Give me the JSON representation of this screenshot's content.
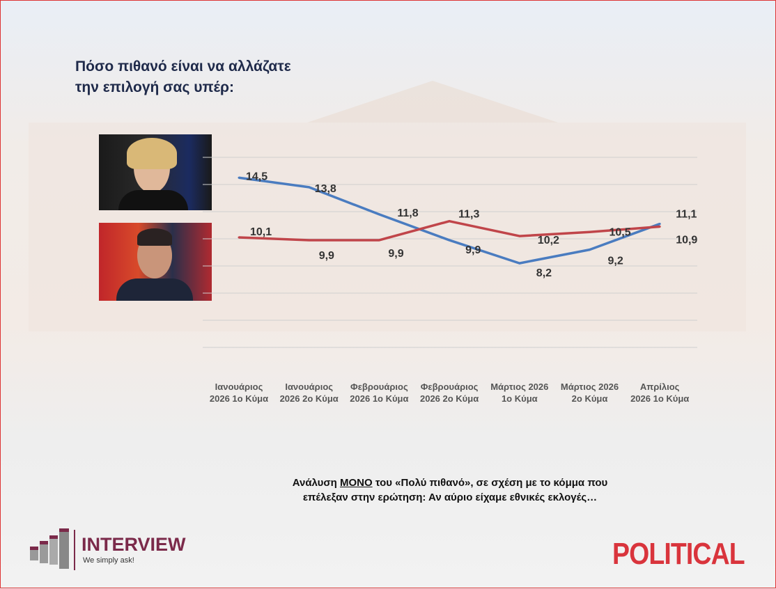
{
  "title_line1": "Πόσο πιθανό είναι να αλλάζατε",
  "title_line2": "την επιλογή σας υπέρ:",
  "note": {
    "pre": "Ανάλυση ",
    "emph": "ΜΟΝΟ",
    "post": " του «Πολύ πιθανό», σε σχέση με το κόμμα που επέλεξαν στην ερώτηση: Αν αύριο είχαμε εθνικές εκλογές…"
  },
  "logo": {
    "name": "INTERVIEW",
    "tagline": "We simply ask!"
  },
  "brand": "POLITICAL",
  "chart_data": {
    "type": "line",
    "title": "Πόσο πιθανό είναι να αλλάζατε την επιλογή σας υπέρ:",
    "categories": [
      [
        "Ιανουάριος",
        "2026 1ο Κύμα"
      ],
      [
        "Ιανουάριος",
        "2026 2ο Κύμα"
      ],
      [
        "Φεβρουάριος",
        "2026 1ο Κύμα"
      ],
      [
        "Φεβρουάριος",
        "2026 2ο Κύμα"
      ],
      [
        "Μάρτιος 2026",
        "1ο Κύμα"
      ],
      [
        "Μάρτιος 2026",
        "2ο Κύμα"
      ],
      [
        "Απρίλιος",
        "2026 1ο Κύμα"
      ]
    ],
    "series": [
      {
        "name": "Blue series (top photo)",
        "color": "#4a7cc0",
        "values": [
          14.5,
          13.8,
          11.8,
          9.9,
          8.2,
          9.2,
          11.1
        ],
        "labels": [
          "14,5",
          "13,8",
          "11,8",
          "9,9",
          "8,2",
          "9,2",
          "11,1"
        ]
      },
      {
        "name": "Red series (bottom photo)",
        "color": "#c0454a",
        "values": [
          10.1,
          9.9,
          9.9,
          11.3,
          10.2,
          10.5,
          10.9
        ],
        "labels": [
          "10,1",
          "9,9",
          "9,9",
          "11,3",
          "10,2",
          "10,5",
          "10,9"
        ]
      }
    ],
    "ylim": [
      2,
      16
    ],
    "grid": true,
    "ytick_step": 2
  }
}
